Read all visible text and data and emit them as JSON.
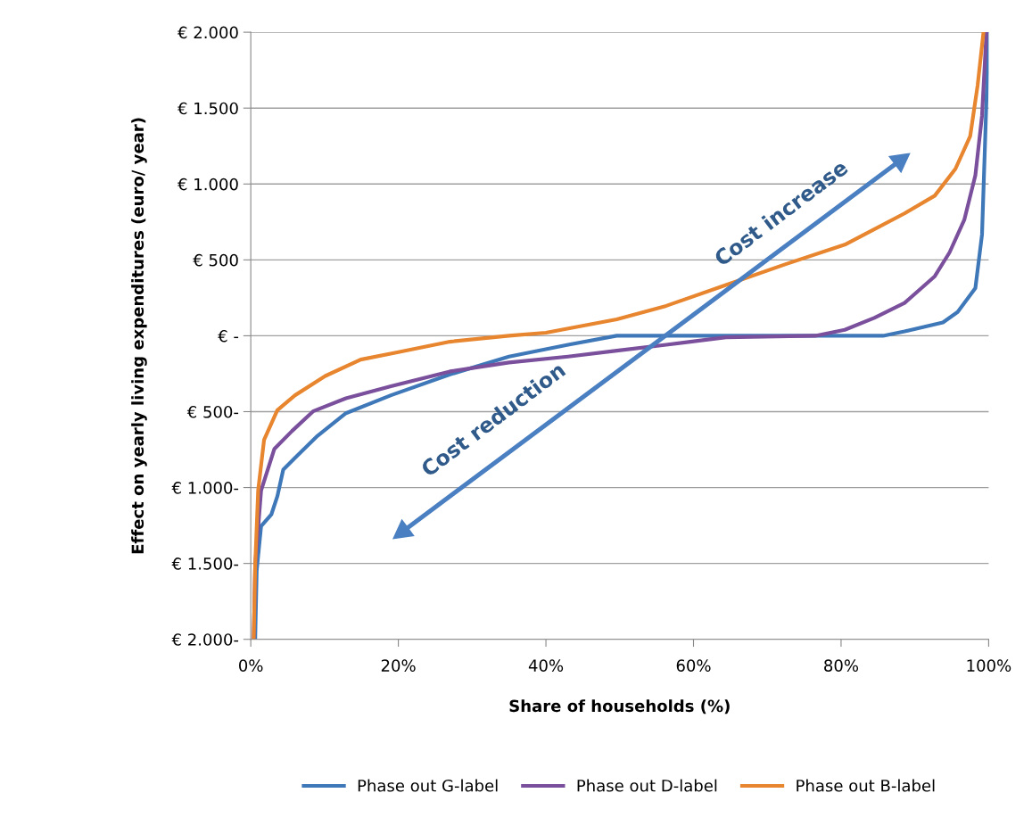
{
  "chart_data": {
    "type": "line",
    "xlabel": "Share of households (%)",
    "ylabel": "Effect on yearly living expenditures (euro/ year)",
    "xlim": [
      0,
      100
    ],
    "xticks": [
      {
        "value": 0,
        "label": "0%"
      },
      {
        "value": 20,
        "label": "20%"
      },
      {
        "value": 40,
        "label": "40%"
      },
      {
        "value": 60,
        "label": "60%"
      },
      {
        "value": 80,
        "label": "80%"
      },
      {
        "value": 100,
        "label": "100%"
      }
    ],
    "ylim": [
      -2000,
      2000
    ],
    "yticks": [
      {
        "value": 2000,
        "label": "€ 2.000"
      },
      {
        "value": 1500,
        "label": "€ 1.500"
      },
      {
        "value": 1000,
        "label": "€ 1.000"
      },
      {
        "value": 500,
        "label": "€ 500"
      },
      {
        "value": 0,
        "label": "€ -"
      },
      {
        "value": -500,
        "label": "€ 500-"
      },
      {
        "value": -1000,
        "label": "€ 1.000-"
      },
      {
        "value": -1500,
        "label": "€ 1.500-"
      },
      {
        "value": -2000,
        "label": "€ 2.000-"
      }
    ],
    "grid": "y",
    "legend": "bottom",
    "marker": "none",
    "line_style": "solid",
    "annotations": [
      "Cost increase",
      "Cost reduction"
    ],
    "series": [
      {
        "name": "Phase out G-label",
        "color": "#3f78b8",
        "x": [
          0.6,
          0.8,
          1.4,
          2.8,
          3.6,
          4.4,
          6,
          8.9,
          12.9,
          19,
          27,
          35,
          43,
          49.6,
          85.7,
          88.6,
          93.8,
          95.8,
          98.2,
          99.1,
          99.5,
          100
        ],
        "values": [
          -2000,
          -1548,
          -1254,
          -1176,
          -1058,
          -882,
          -804,
          -666,
          -510,
          -392,
          -255,
          -137,
          -59,
          0,
          0,
          29,
          88,
          157,
          314,
          667,
          1254,
          2000
        ]
      },
      {
        "name": "Phase out D-label",
        "color": "#7a4f9c",
        "x": [
          0.4,
          0.6,
          1.4,
          3.2,
          5.6,
          8.5,
          12.9,
          19,
          27,
          35,
          43,
          49.6,
          56.3,
          64.4,
          76.5,
          80.5,
          84.5,
          88.6,
          92.7,
          94.7,
          96.7,
          98.2,
          99.1,
          99.7
        ],
        "values": [
          -2000,
          -1509,
          -1019,
          -745,
          -627,
          -496,
          -412,
          -333,
          -235,
          -176,
          -137,
          -98,
          -59,
          -10,
          0,
          39,
          118,
          216,
          392,
          549,
          764,
          1058,
          1450,
          2000
        ]
      },
      {
        "name": "Phase out B-label",
        "color": "#e8852f",
        "x": [
          0.4,
          0.6,
          1.0,
          1.8,
          3.6,
          6.0,
          10.1,
          14.9,
          20,
          27,
          35,
          40,
          49.6,
          56.3,
          64.4,
          72.5,
          80.5,
          88.6,
          92.7,
          95.5,
          97.5,
          98.5,
          99.3
        ],
        "values": [
          -2000,
          -1509,
          -1019,
          -686,
          -490,
          -392,
          -265,
          -157,
          -108,
          -39,
          0,
          20,
          108,
          197,
          335,
          472,
          600,
          806,
          923,
          1100,
          1315,
          1648,
          2000
        ]
      }
    ]
  }
}
